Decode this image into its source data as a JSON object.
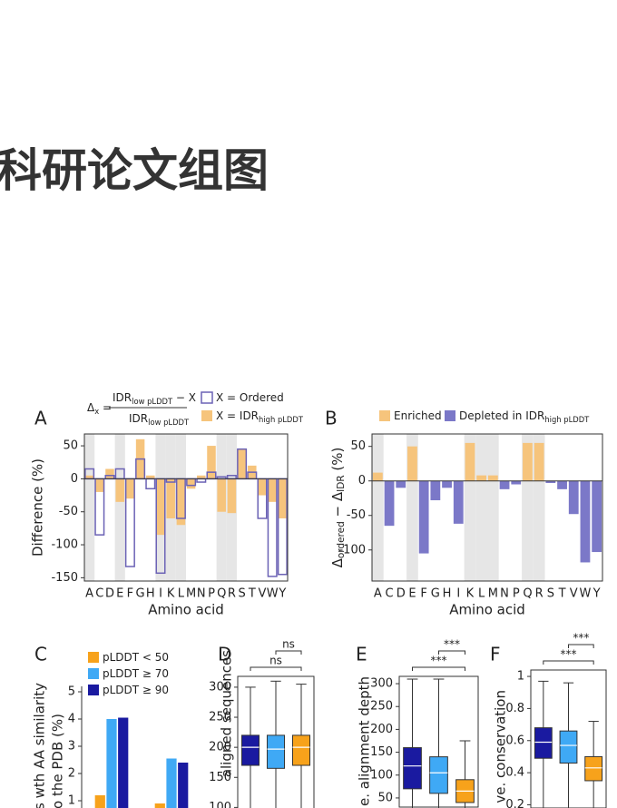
{
  "header": {
    "title": "科研论文组图"
  },
  "chart_data": [
    {
      "type": "bar",
      "mode": "overlay",
      "panel": "A",
      "frame": true,
      "zero_line": true,
      "xlabel": "Amino acid",
      "ylabel": "Difference (%)",
      "formula": {
        "lhs": "Δ",
        "lhs_sub": "x",
        "eq": " =",
        "numerator": "IDR",
        "numerator_sub": "low pLDDT",
        "numerator_rest": " − X",
        "denominator": "IDR",
        "denominator_sub": "low pLDDT"
      },
      "categories": [
        "A",
        "C",
        "D",
        "E",
        "F",
        "G",
        "H",
        "I",
        "K",
        "L",
        "M",
        "N",
        "P",
        "Q",
        "R",
        "S",
        "T",
        "V",
        "W",
        "Y"
      ],
      "shaded": [
        0,
        3,
        7,
        8,
        9,
        13,
        14
      ],
      "ylim": [
        -155,
        68
      ],
      "yticks": [
        50,
        0,
        -50,
        -100,
        -150
      ],
      "series": [
        {
          "name": "X = IDR",
          "sub": "high pLDDT",
          "style": "fill",
          "color": "#f6c47c",
          "values": [
            5,
            -20,
            15,
            -35,
            -30,
            60,
            5,
            -85,
            -60,
            -70,
            -15,
            5,
            50,
            -50,
            -52,
            45,
            20,
            -25,
            -35,
            -60
          ]
        },
        {
          "name": "X = Ordered",
          "style": "outline",
          "color": "#6b62b5",
          "values": [
            15,
            -85,
            5,
            15,
            -133,
            30,
            -15,
            -143,
            -5,
            -60,
            -10,
            -5,
            10,
            3,
            5,
            45,
            10,
            -60,
            -148,
            -145
          ]
        }
      ]
    },
    {
      "type": "bar",
      "mode": "sign",
      "panel": "B",
      "frame": true,
      "zero_line": true,
      "xlabel": "Amino acid",
      "ylabel": [
        "Δ",
        "ordered",
        " − Δ",
        "IDR",
        " (%)"
      ],
      "categories": [
        "A",
        "C",
        "D",
        "E",
        "F",
        "G",
        "H",
        "I",
        "K",
        "L",
        "M",
        "N",
        "P",
        "Q",
        "R",
        "S",
        "T",
        "V",
        "W",
        "Y"
      ],
      "shaded": [
        0,
        3,
        8,
        9,
        10,
        13,
        14
      ],
      "ylim": [
        -145,
        68
      ],
      "yticks": [
        50,
        0,
        -50,
        -100
      ],
      "values": [
        12,
        -65,
        -10,
        50,
        -105,
        -28,
        -10,
        -62,
        55,
        8,
        8,
        -12,
        -5,
        55,
        55,
        -3,
        -12,
        -48,
        -118,
        -103
      ],
      "series": [
        {
          "name": "Enriched",
          "style": "fill",
          "color": "#f6c47c"
        },
        {
          "name": "Depleted in IDR",
          "sub": "high pLDDT",
          "style": "fill",
          "color": "#7b78c8"
        }
      ]
    },
    {
      "type": "bar",
      "mode": "grouped",
      "panel": "C",
      "frame": false,
      "ylabel": [
        "s wth AA similarity",
        "o the PDB (%)"
      ],
      "categories": [
        null,
        null
      ],
      "ylim": [
        0,
        5.2
      ],
      "yticks": [
        1,
        2,
        3,
        4,
        5
      ],
      "series": [
        {
          "name": "pLDDT < 50",
          "style": "fill",
          "color": "#f7a21b",
          "values": [
            1.2,
            0.9
          ]
        },
        {
          "name": "pLDDT ≥ 70",
          "style": "fill",
          "color": "#3fa9f5",
          "values": [
            4.0,
            2.55
          ]
        },
        {
          "name": "pLDDT ≥ 90",
          "style": "fill",
          "color": "#1a1aa0",
          "values": [
            4.05,
            2.4
          ]
        }
      ]
    },
    {
      "type": "box",
      "panel": "D",
      "frame": true,
      "ylabel": "aligned sequences",
      "ylim": [
        90,
        318
      ],
      "yticks": [
        100,
        150,
        200,
        250,
        300
      ],
      "comparisons": [
        {
          "pair": [
            1,
            2
          ],
          "label": "ns"
        },
        {
          "pair": [
            0,
            2
          ],
          "label": "ns"
        }
      ],
      "series": [
        {
          "color": "#1a1aa0",
          "q1": 170,
          "median": 200,
          "q3": 220,
          "whisker_high": 300
        },
        {
          "color": "#3fa9f5",
          "q1": 165,
          "median": 197,
          "q3": 220,
          "whisker_high": 310
        },
        {
          "color": "#f7a21b",
          "q1": 170,
          "median": 200,
          "q3": 220,
          "whisker_high": 305
        }
      ]
    },
    {
      "type": "box",
      "panel": "E",
      "frame": true,
      "ylabel": "e. alignment depth",
      "ylim": [
        30,
        316
      ],
      "yticks": [
        50,
        100,
        150,
        200,
        250,
        300
      ],
      "comparisons": [
        {
          "pair": [
            1,
            2
          ],
          "label": "***"
        },
        {
          "pair": [
            0,
            2
          ],
          "label": "***"
        }
      ],
      "series": [
        {
          "color": "#1a1aa0",
          "q1": 70,
          "median": 120,
          "q3": 160,
          "whisker_high": 310
        },
        {
          "color": "#3fa9f5",
          "q1": 60,
          "median": 105,
          "q3": 140,
          "whisker_high": 310
        },
        {
          "color": "#f7a21b",
          "q1": 40,
          "median": 65,
          "q3": 90,
          "whisker_high": 175
        }
      ]
    },
    {
      "type": "box",
      "panel": "F",
      "frame": true,
      "ylabel": "ve. conservation",
      "ylim": [
        0.18,
        1.04
      ],
      "yticks": [
        0.2,
        0.4,
        0.6,
        0.8,
        1
      ],
      "comparisons": [
        {
          "pair": [
            1,
            2
          ],
          "label": "***"
        },
        {
          "pair": [
            0,
            2
          ],
          "label": "***"
        }
      ],
      "series": [
        {
          "color": "#1a1aa0",
          "q1": 0.49,
          "median": 0.59,
          "q3": 0.68,
          "whisker_high": 0.97
        },
        {
          "color": "#3fa9f5",
          "q1": 0.46,
          "median": 0.57,
          "q3": 0.66,
          "whisker_high": 0.96
        },
        {
          "color": "#f7a21b",
          "q1": 0.35,
          "median": 0.43,
          "q3": 0.5,
          "whisker_high": 0.72
        }
      ]
    }
  ]
}
